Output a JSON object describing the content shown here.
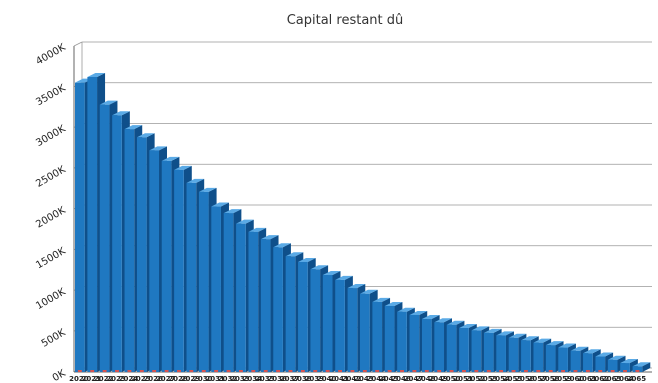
{
  "chart_data": {
    "type": "bar",
    "title": "Capital restant dû",
    "xlabel": "",
    "ylabel": "",
    "ylim": [
      0,
      4000000
    ],
    "y_ticks": [
      "0K",
      "500K",
      "1000K",
      "1500K",
      "2000K",
      "2500K",
      "3000K",
      "3500K",
      "4000K"
    ],
    "grid": true,
    "render_style": "3d",
    "colors": {
      "bar": "#1f78c1",
      "bar_side": "#0f4f8a",
      "bar_top": "#5aaae6",
      "grid": "#999999"
    },
    "categories": [
      "2020",
      "2021",
      "2022",
      "2023",
      "2024",
      "2025",
      "2026",
      "2027",
      "2028",
      "2029",
      "2030",
      "2031",
      "2032",
      "2033",
      "2034",
      "2035",
      "2036",
      "2037",
      "2038",
      "2039",
      "2040",
      "2041",
      "2042",
      "2043",
      "2044",
      "2045",
      "2046",
      "2047",
      "2048",
      "2049",
      "2050",
      "2051",
      "2052",
      "2053",
      "2054",
      "2055",
      "2056",
      "2057",
      "2058",
      "2059",
      "2060",
      "2061",
      "2062",
      "2063",
      "2064",
      "2065"
    ],
    "series": [
      {
        "values": [
          3550000,
          3620000,
          3280000,
          3150000,
          2980000,
          2880000,
          2720000,
          2590000,
          2480000,
          2320000,
          2210000,
          2030000,
          1950000,
          1820000,
          1720000,
          1630000,
          1530000,
          1420000,
          1350000,
          1260000,
          1190000,
          1130000,
          1030000,
          960000,
          860000,
          810000,
          740000,
          700000,
          650000,
          610000,
          580000,
          540000,
          510000,
          480000,
          450000,
          420000,
          390000,
          360000,
          330000,
          300000,
          260000,
          230000,
          190000,
          150000,
          110000,
          70000
        ]
      }
    ]
  }
}
